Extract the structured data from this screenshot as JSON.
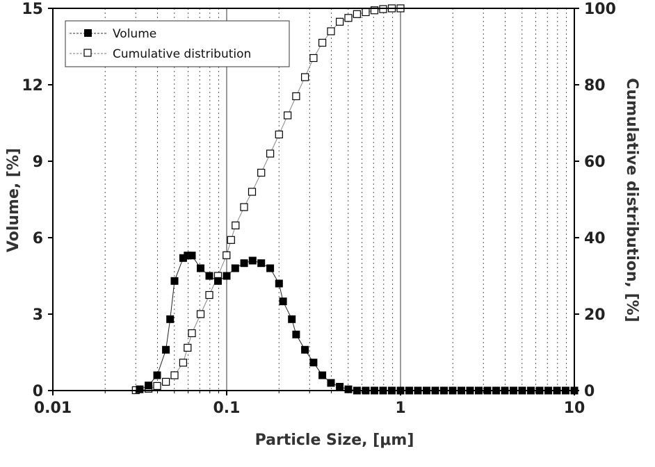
{
  "chart_data": {
    "type": "scatter",
    "xscale": "log",
    "xlim": [
      0.01,
      10
    ],
    "ylim_left": [
      0,
      15
    ],
    "ylim_right": [
      0,
      100
    ],
    "xlabel": "Particle Size, [μm]",
    "ylabel_left": "Volume, [%]",
    "ylabel_right": "Cumulative distribution, [%]",
    "x_tick_labels": [
      "0.01",
      "0.1",
      "1",
      "10"
    ],
    "y_left_tick_labels": [
      "0",
      "3",
      "6",
      "9",
      "12",
      "15"
    ],
    "y_right_tick_labels": [
      "0",
      "20",
      "40",
      "60",
      "80",
      "100"
    ],
    "grid": "vertical dotted (log minors), solid at decades",
    "legend_position": "top-left",
    "series": [
      {
        "name": "Volume",
        "axis": "left",
        "marker": "filled-square",
        "points": [
          [
            0.0316,
            0.05
          ],
          [
            0.0355,
            0.2
          ],
          [
            0.0398,
            0.6
          ],
          [
            0.0447,
            1.6
          ],
          [
            0.0473,
            2.8
          ],
          [
            0.0501,
            4.3
          ],
          [
            0.0562,
            5.2
          ],
          [
            0.0596,
            5.3
          ],
          [
            0.0631,
            5.3
          ],
          [
            0.0708,
            4.8
          ],
          [
            0.0794,
            4.5
          ],
          [
            0.0891,
            4.3
          ],
          [
            0.1,
            4.5
          ],
          [
            0.112,
            4.8
          ],
          [
            0.126,
            5.0
          ],
          [
            0.141,
            5.1
          ],
          [
            0.158,
            5.0
          ],
          [
            0.178,
            4.8
          ],
          [
            0.2,
            4.2
          ],
          [
            0.211,
            3.5
          ],
          [
            0.237,
            2.8
          ],
          [
            0.251,
            2.2
          ],
          [
            0.282,
            1.6
          ],
          [
            0.316,
            1.1
          ],
          [
            0.355,
            0.6
          ],
          [
            0.398,
            0.3
          ],
          [
            0.447,
            0.15
          ],
          [
            0.501,
            0.05
          ],
          [
            0.562,
            0.0
          ],
          [
            0.631,
            0.0
          ],
          [
            0.708,
            0.0
          ],
          [
            0.794,
            0.0
          ],
          [
            0.891,
            0.0
          ],
          [
            1.0,
            0.0
          ],
          [
            1.122,
            0.0
          ],
          [
            1.259,
            0.0
          ],
          [
            1.413,
            0.0
          ],
          [
            1.585,
            0.0
          ],
          [
            1.778,
            0.0
          ],
          [
            1.995,
            0.0
          ],
          [
            2.239,
            0.0
          ],
          [
            2.512,
            0.0
          ],
          [
            2.818,
            0.0
          ],
          [
            3.162,
            0.0
          ],
          [
            3.548,
            0.0
          ],
          [
            3.981,
            0.0
          ],
          [
            4.467,
            0.0
          ],
          [
            5.012,
            0.0
          ],
          [
            5.623,
            0.0
          ],
          [
            6.31,
            0.0
          ],
          [
            7.079,
            0.0
          ],
          [
            7.943,
            0.0
          ],
          [
            8.913,
            0.0
          ],
          [
            10.0,
            0.0
          ]
        ]
      },
      {
        "name": "Cumulative distribution",
        "axis": "right",
        "marker": "open-square",
        "points": [
          [
            0.03,
            0.1
          ],
          [
            0.0355,
            0.5
          ],
          [
            0.0398,
            1.2
          ],
          [
            0.0447,
            2.3
          ],
          [
            0.0501,
            4.0
          ],
          [
            0.0562,
            7.3
          ],
          [
            0.0596,
            11.2
          ],
          [
            0.0631,
            15.0
          ],
          [
            0.0708,
            20.0
          ],
          [
            0.0794,
            25.0
          ],
          [
            0.0891,
            30.0
          ],
          [
            0.0998,
            35.4
          ],
          [
            0.106,
            39.4
          ],
          [
            0.1125,
            43.2
          ],
          [
            0.1259,
            48.0
          ],
          [
            0.14,
            52.0
          ],
          [
            0.158,
            57.0
          ],
          [
            0.178,
            62.0
          ],
          [
            0.2,
            67.0
          ],
          [
            0.224,
            72.0
          ],
          [
            0.251,
            77.0
          ],
          [
            0.282,
            82.0
          ],
          [
            0.316,
            87.0
          ],
          [
            0.355,
            91.0
          ],
          [
            0.398,
            94.0
          ],
          [
            0.447,
            96.5
          ],
          [
            0.501,
            97.5
          ],
          [
            0.562,
            98.5
          ],
          [
            0.631,
            99.0
          ],
          [
            0.708,
            99.5
          ],
          [
            0.794,
            99.8
          ],
          [
            0.891,
            100.0
          ],
          [
            1.0,
            100.0
          ]
        ]
      }
    ]
  }
}
